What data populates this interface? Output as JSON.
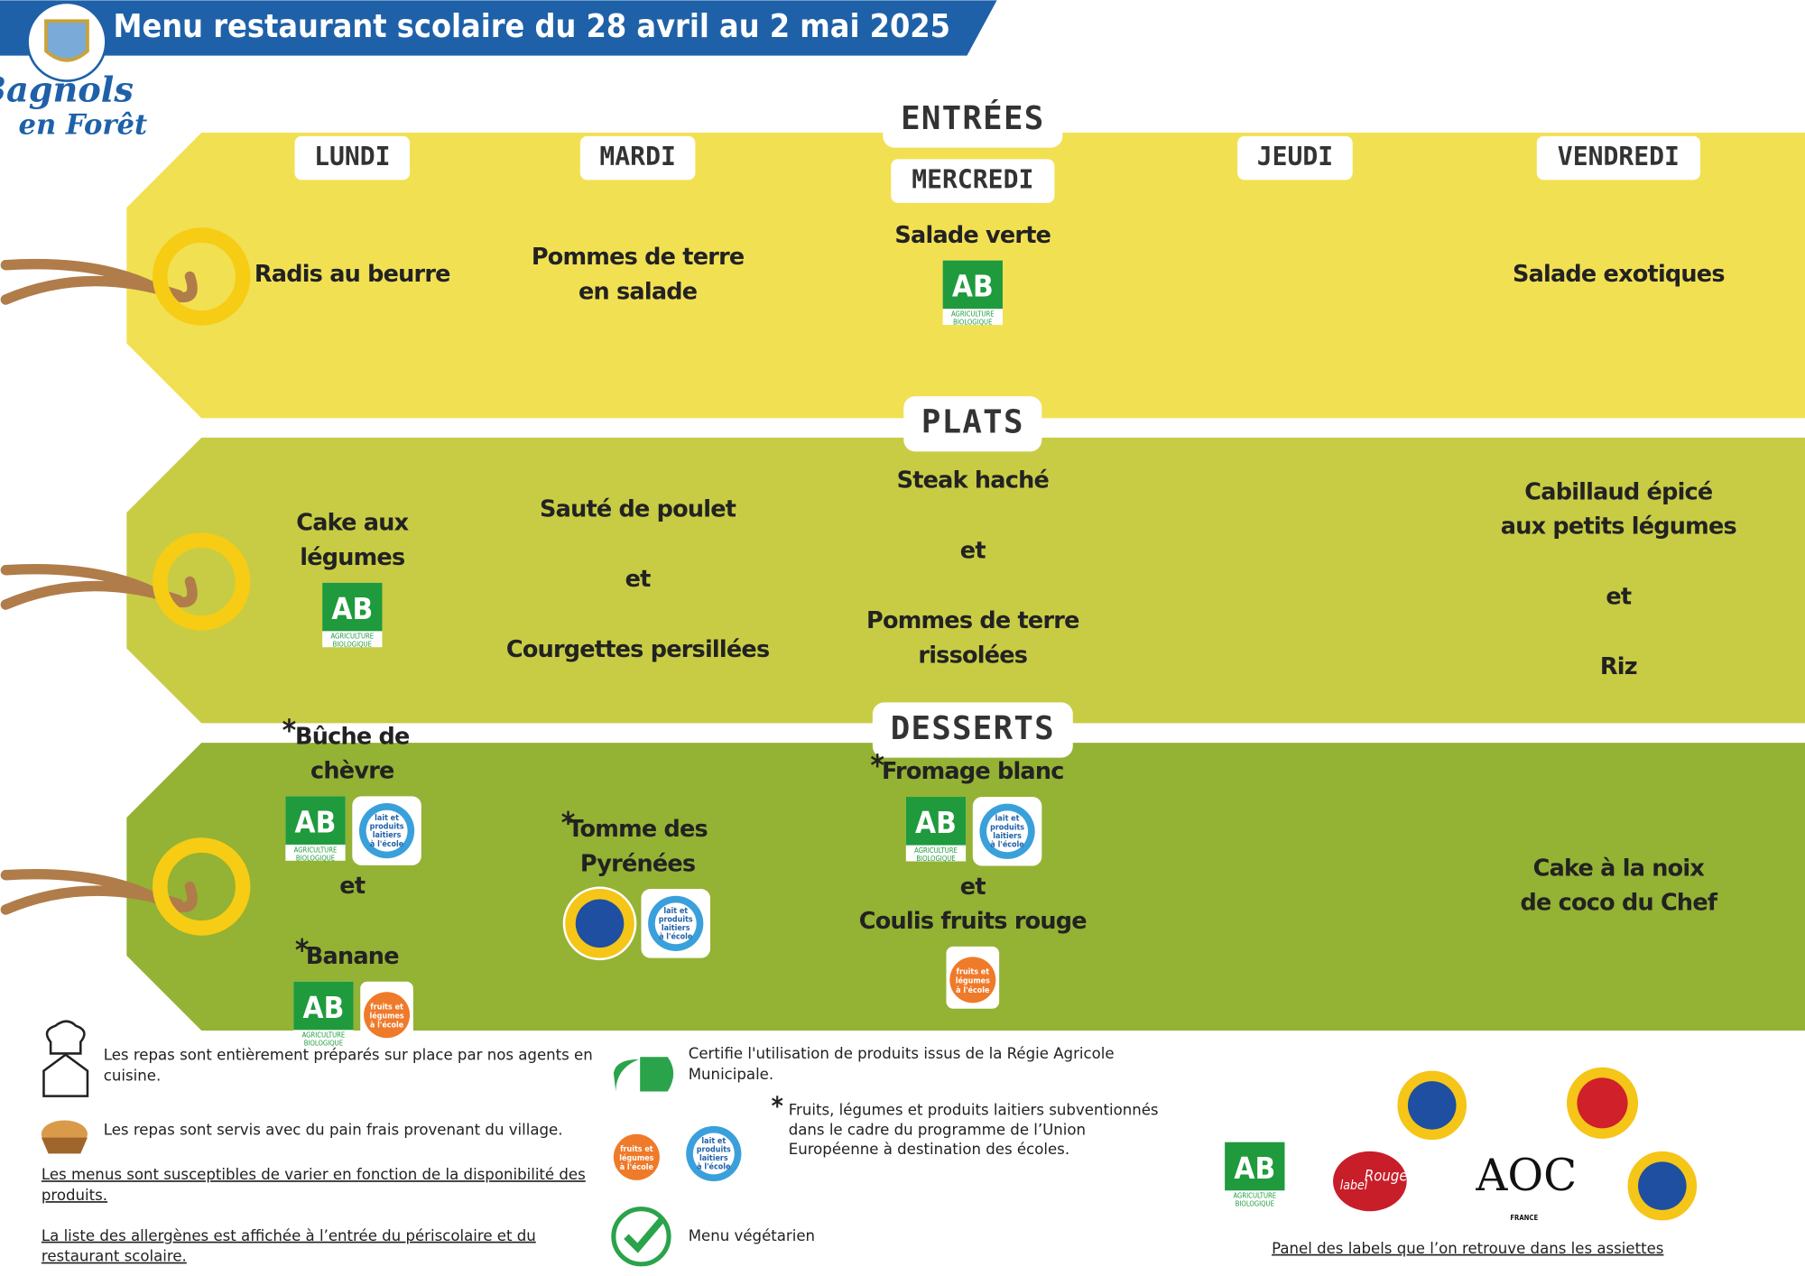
{
  "header": {
    "title": "Menu restaurant scolaire du 28 avril au 2 mai 2025",
    "town": [
      "Bagnols",
      "en Forêt"
    ]
  },
  "days": [
    "LUNDI",
    "MARDI",
    "MERCREDI",
    "JEUDI",
    "VENDREDI"
  ],
  "star": "*",
  "sections": [
    {
      "title": "ENTRÉES",
      "cells": [
        [
          {
            "lines": [
              "Radis au beurre"
            ]
          }
        ],
        [
          {
            "lines": [
              "Pommes de terre",
              "en salade"
            ]
          }
        ],
        [
          {
            "lines": [
              "Salade verte"
            ]
          },
          {
            "icons": [
              "ab"
            ]
          }
        ],
        [],
        [
          {
            "lines": [
              "Salade exotiques"
            ]
          }
        ]
      ]
    },
    {
      "title": "PLATS",
      "cells": [
        [
          {
            "lines": [
              "Cake aux",
              "légumes"
            ]
          },
          {
            "icons": [
              "ab"
            ]
          }
        ],
        [
          {
            "lines": [
              "Sauté de poulet"
            ]
          },
          {
            "lines": [
              "et"
            ]
          },
          {
            "lines": [
              "Courgettes persillées"
            ]
          }
        ],
        [
          {
            "lines": [
              "Steak haché"
            ]
          },
          {
            "lines": [
              "et"
            ]
          },
          {
            "lines": [
              "Pommes de terre",
              "rissolées"
            ]
          }
        ],
        [],
        [
          {
            "lines": [
              "Cabillaud épicé",
              "aux petits légumes"
            ]
          },
          {
            "lines": [
              "et"
            ]
          },
          {
            "lines": [
              "Riz"
            ]
          }
        ]
      ]
    },
    {
      "title": "DESSERTS",
      "cells": [
        [
          {
            "star": true,
            "lines": [
              "Bûche de",
              "chèvre"
            ]
          },
          {
            "icons": [
              "ab",
              "lait"
            ]
          },
          {
            "lines": [
              "et"
            ]
          },
          {
            "star": true,
            "lines": [
              "Banane"
            ]
          },
          {
            "icons": [
              "ab",
              "fruits"
            ]
          }
        ],
        [
          {
            "star": true,
            "lines": [
              "Tomme des",
              "Pyrénées"
            ]
          },
          {
            "icons": [
              "igp",
              "lait"
            ]
          }
        ],
        [
          {
            "star": true,
            "lines": [
              "Fromage blanc"
            ]
          },
          {
            "icons": [
              "ab",
              "lait"
            ]
          },
          {
            "lines": [
              "et",
              "Coulis fruits rouge"
            ]
          },
          {
            "icons": [
              "fruits"
            ]
          }
        ],
        [],
        [
          {
            "lines": [
              "Cake à la noix",
              "de coco du Chef"
            ]
          }
        ]
      ]
    }
  ],
  "icons": {
    "ab": "AB",
    "ab_sub": [
      "AGRICULTURE",
      "BIOLOGIQUE"
    ],
    "lait": [
      "lait et",
      "produits",
      "laitiers",
      "à l'école"
    ],
    "fruits": [
      "fruits et",
      "légumes",
      "à l'école"
    ],
    "label_rouge": [
      "label",
      "Rouge"
    ],
    "aoc": "AOC",
    "france": "FRANCE"
  },
  "legend": {
    "left": [
      [
        "Les repas sont entièrement préparés sur place par nos agents en",
        "cuisine."
      ],
      [
        "Les repas sont servis avec du pain frais provenant du village."
      ],
      [
        "Les menus sont susceptibles de varier en fonction de la disponibilité des",
        "produits."
      ],
      [
        "La liste des allergènes est affichée à l’entrée du périscolaire et du",
        "restaurant scolaire."
      ]
    ],
    "regie": [
      "Certifie l'utilisation de produits issus de la Régie Agricole",
      "Municipale."
    ],
    "subsidy": [
      "Fruits, légumes et produits laitiers subventionnés",
      "dans le cadre du programme de l’Union",
      "Européenne à destination des écoles."
    ],
    "vegetarian": "Menu végétarien",
    "panel": "Panel des labels que l’on retrouve dans les assiettes"
  }
}
